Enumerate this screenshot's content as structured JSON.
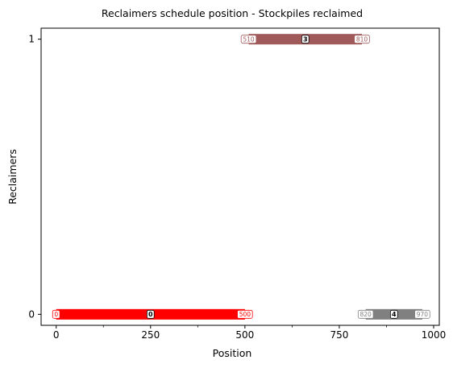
{
  "chart_data": {
    "type": "gantt",
    "title": "Reclaimers schedule position - Stockpiles reclaimed",
    "xlabel": "Position",
    "ylabel": "Reclaimers",
    "xlim": [
      -40,
      1015
    ],
    "ylim": [
      -0.04,
      1.04
    ],
    "xticks": [
      0,
      250,
      500,
      750,
      1000
    ],
    "xticks_minor": [
      125,
      375,
      625,
      875
    ],
    "yticks": [
      0,
      1
    ],
    "grid": false,
    "segments": [
      {
        "reclaimer": 0,
        "start": 0,
        "end": 500,
        "stockpile": "0",
        "start_label": "0",
        "end_label": "500",
        "color": "#ff0000"
      },
      {
        "reclaimer": 1,
        "start": 510,
        "end": 810,
        "stockpile": "3",
        "start_label": "510",
        "end_label": "810",
        "color": "#a05a5a"
      },
      {
        "reclaimer": 0,
        "start": 820,
        "end": 970,
        "stockpile": "4",
        "start_label": "820",
        "end_label": "970",
        "color": "#808080"
      }
    ]
  }
}
